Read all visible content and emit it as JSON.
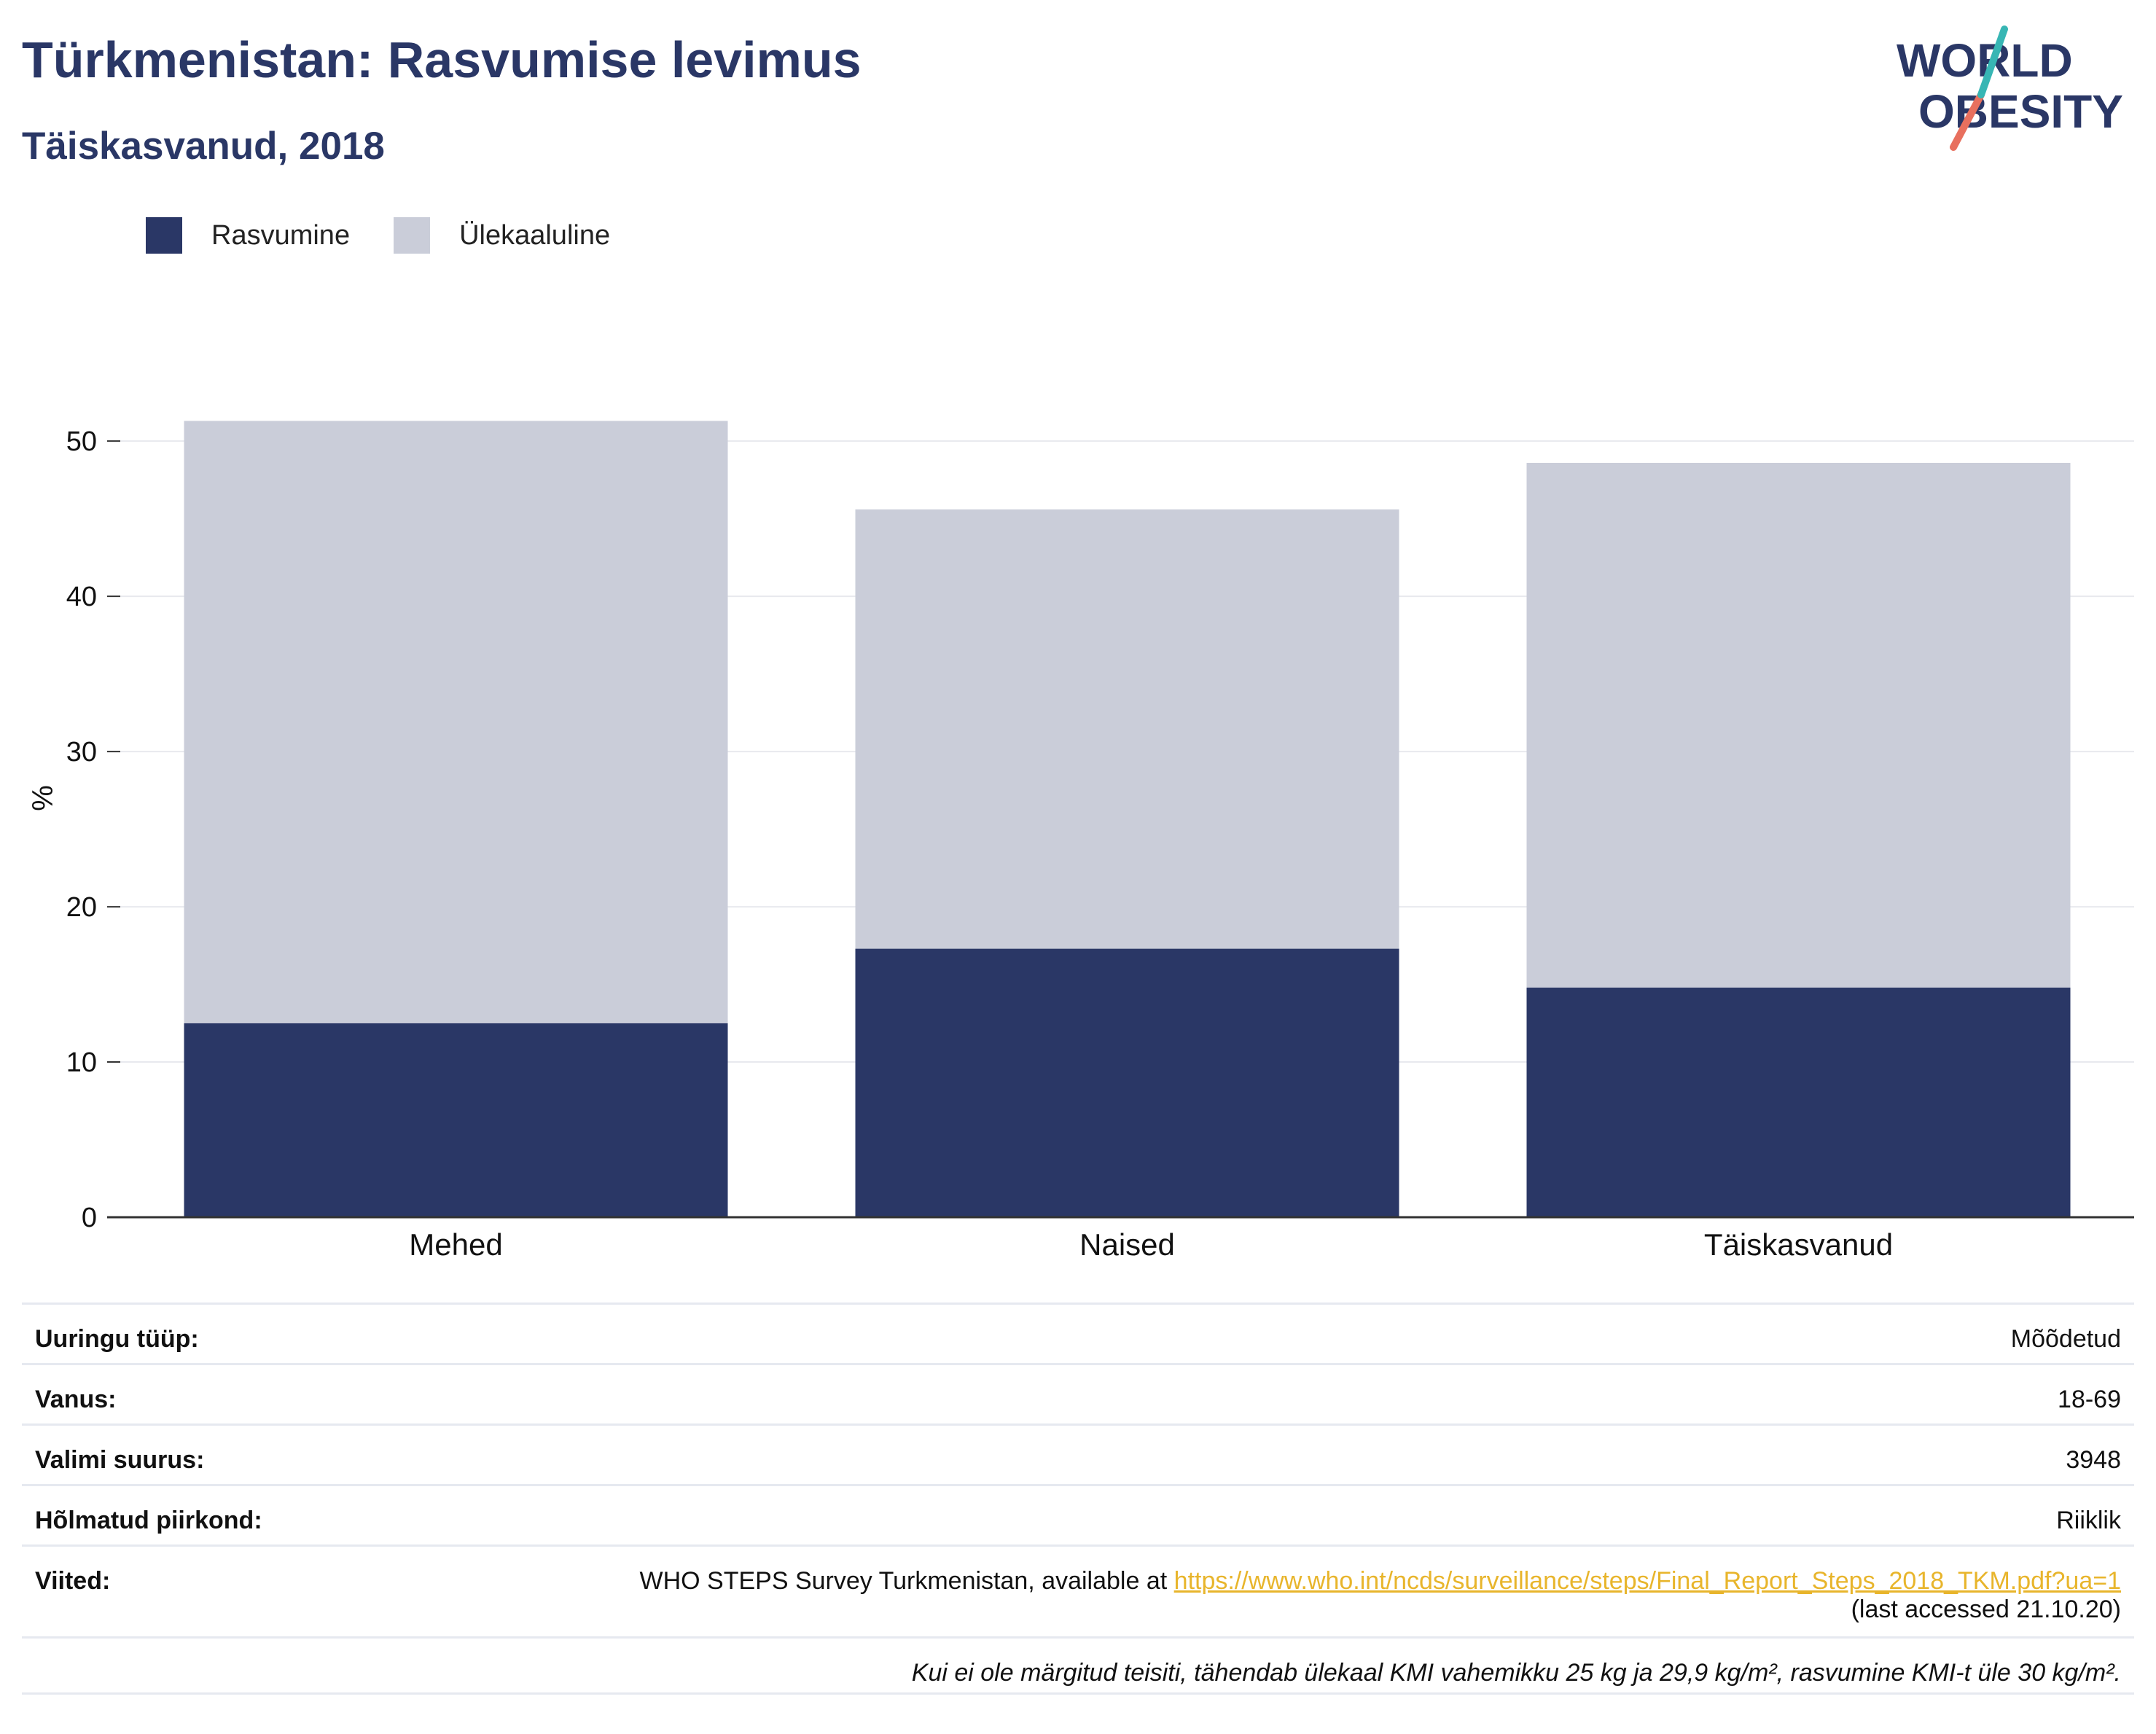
{
  "header": {
    "title": "Türkmenistan: Rasvumise levimus",
    "subtitle": "Täiskasvanud, 2018"
  },
  "logo": {
    "line1": "WORLD",
    "line2": "OBESITY"
  },
  "legend": {
    "items": [
      {
        "label": "Rasvumine",
        "color": "#2a3766"
      },
      {
        "label": "Ülekaaluline",
        "color": "#cacdd9"
      }
    ]
  },
  "chart_data": {
    "type": "bar",
    "stacked": true,
    "categories": [
      "Mehed",
      "Naised",
      "Täiskasvanud"
    ],
    "series": [
      {
        "name": "Rasvumine",
        "color": "#2a3766",
        "values": [
          12.5,
          17.3,
          14.8
        ]
      },
      {
        "name": "Ülekaaluline",
        "color": "#cacdd9",
        "values": [
          38.8,
          28.3,
          33.8
        ]
      }
    ],
    "ylabel": "%",
    "ylim": [
      0,
      54
    ],
    "yticks": [
      0,
      10,
      20,
      30,
      40,
      50
    ],
    "grid": true,
    "legend_position": "top-left"
  },
  "meta": {
    "survey_type_label": "Uuringu tüüp:",
    "survey_type_value": "Mõõdetud",
    "age_label": "Vanus:",
    "age_value": "18-69",
    "sample_label": "Valimi suurus:",
    "sample_value": "3948",
    "area_label": "Hõlmatud piirkond:",
    "area_value": "Riiklik",
    "refs_label": "Viited:",
    "refs_text": "WHO STEPS Survey Turkmenistan, available at ",
    "refs_link": "https://www.who.int/ncds/surveillance/steps/Final_Report_Steps_2018_TKM.pdf?ua=1",
    "refs_accessed": "(last accessed 21.10.20)",
    "note": "Kui ei ole märgitud teisiti, tähendab ülekaal KMI vahemikku 25 kg ja 29,9 kg/m², rasvumine KMI-t üle 30 kg/m²."
  }
}
